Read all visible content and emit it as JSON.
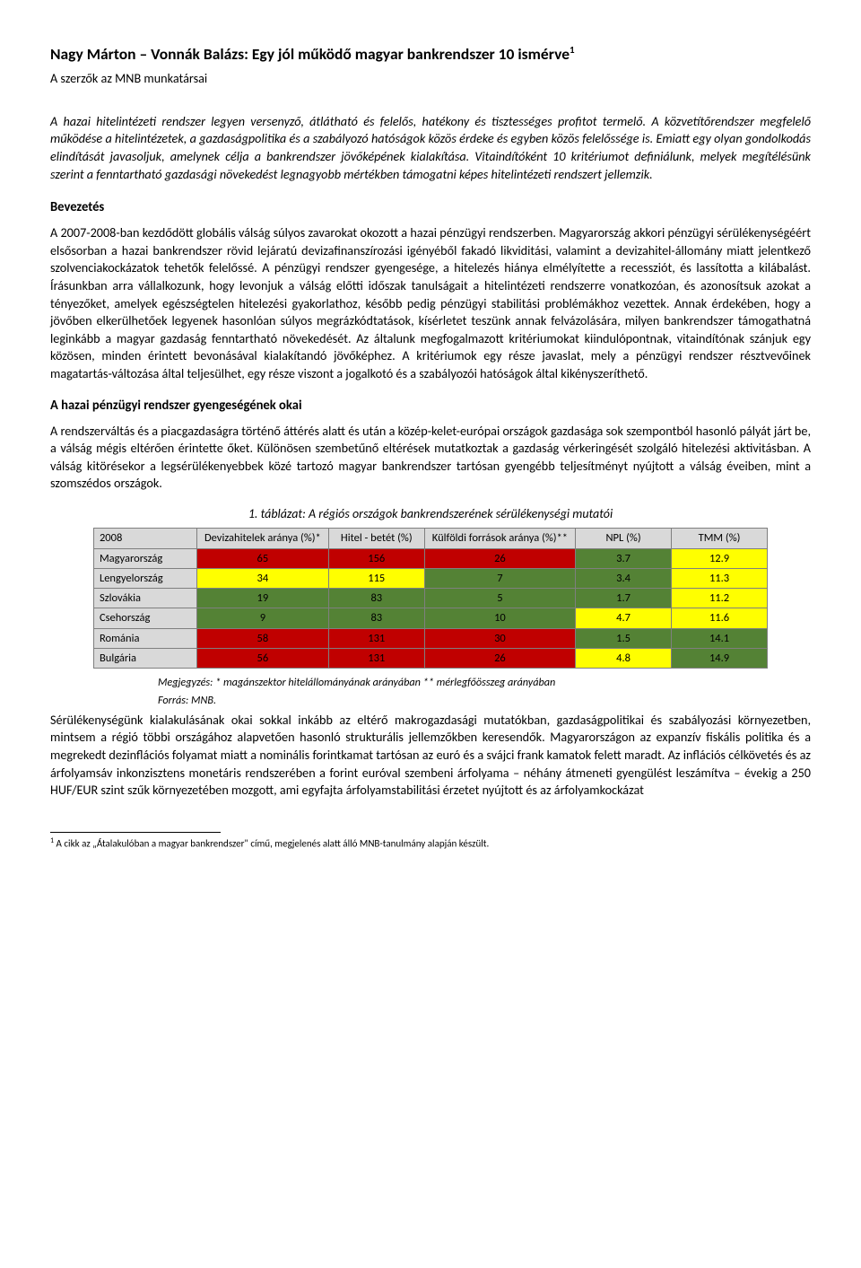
{
  "title_main": "Nagy Márton – Vonnák Balázs: Egy jól működő magyar bankrendszer 10 ismérve",
  "title_sup": "1",
  "subtitle": "A szerzők az MNB munkatársai",
  "lead": "A hazai hitelintézeti rendszer legyen versenyző, átlátható és felelős, hatékony és tisztességes profitot termelő. A közvetítőrendszer megfelelő működése a hitelintézetek, a gazdaságpolitika és a szabályozó hatóságok közös érdeke és egyben közös felelőssége is. Emiatt egy olyan gondolkodás elindítását javasoljuk, amelynek célja a bankrendszer jövőképének kialakítása. Vitaindítóként 10 kritériumot definiálunk, melyek megítélésünk szerint a fenntartható gazdasági növekedést legnagyobb mértékben támogatni képes hitelintézeti rendszert jellemzik.",
  "sec1_head": "Bevezetés",
  "sec1_body": "A 2007-2008-ban kezdődött globális válság súlyos zavarokat okozott a hazai pénzügyi rendszerben. Magyarország akkori pénzügyi sérülékenységéért elsősorban a hazai bankrendszer rövid lejáratú devizafinanszírozási igényéből fakadó likviditási, valamint a devizahitel-állomány miatt jelentkező szolvenciakockázatok tehetők felelőssé. A pénzügyi rendszer gyengesége, a hitelezés hiánya elmélyítette a recessziót, és lassította a kilábalást. Írásunkban arra vállalkozunk, hogy levonjuk a válság előtti időszak tanulságait a hitelintézeti rendszerre vonatkozóan, és azonosítsuk azokat a tényezőket, amelyek egészségtelen hitelezési gyakorlathoz, később pedig pénzügyi stabilitási problémákhoz vezettek. Annak érdekében, hogy a jövőben elkerülhetőek legyenek hasonlóan súlyos megrázkódtatások, kísérletet teszünk annak felvázolására, milyen bankrendszer támogathatná leginkább a magyar gazdaság fenntartható növekedését. Az általunk megfogalmazott kritériumokat kiindulópontnak, vitaindítónak szánjuk egy közösen, minden érintett bevonásával kialakítandó jövőképhez. A kritériumok egy része javaslat, mely a pénzügyi rendszer résztvevőinek magatartás-változása által teljesülhet, egy része viszont a jogalkotó és a szabályozói hatóságok által kikényszeríthető.",
  "sec2_head": "A hazai pénzügyi rendszer gyengeségének okai",
  "sec2_body": "A rendszerváltás és a piacgazdaságra történő áttérés alatt és után a közép-kelet-európai országok gazdasága sok szempontból hasonló pályát járt be, a válság mégis eltérően érintette őket. Különösen szembetűnő eltérések mutatkoztak a gazdaság vérkeringését szolgáló hitelezési aktivitásban. A válság kitörésekor a legsérülékenyebbek közé tartozó magyar bankrendszer tartósan gyengébb teljesítményt nyújtott a válság éveiben, mint a szomszédos országok.",
  "table": {
    "caption": "1. táblázat: A régiós országok bankrendszerének sérülékenységi mutatói",
    "year": "2008",
    "columns": [
      "Devizahitelek aránya (%)*",
      "Hitel - betét (%)",
      "Külföldi források aránya (%)**",
      "NPL (%)",
      "TMM (%)"
    ],
    "rows": [
      {
        "name": "Magyarország",
        "cells": [
          {
            "v": "65",
            "bg": "#c00000"
          },
          {
            "v": "156",
            "bg": "#c00000"
          },
          {
            "v": "26",
            "bg": "#c00000"
          },
          {
            "v": "3.7",
            "bg": "#548235"
          },
          {
            "v": "12.9",
            "bg": "#ffff00"
          }
        ]
      },
      {
        "name": "Lengyelország",
        "cells": [
          {
            "v": "34",
            "bg": "#ffff00"
          },
          {
            "v": "115",
            "bg": "#ffff00"
          },
          {
            "v": "7",
            "bg": "#548235"
          },
          {
            "v": "3.4",
            "bg": "#548235"
          },
          {
            "v": "11.3",
            "bg": "#ffff00"
          }
        ]
      },
      {
        "name": "Szlovákia",
        "cells": [
          {
            "v": "19",
            "bg": "#548235"
          },
          {
            "v": "83",
            "bg": "#548235"
          },
          {
            "v": "5",
            "bg": "#548235"
          },
          {
            "v": "1.7",
            "bg": "#548235"
          },
          {
            "v": "11.2",
            "bg": "#ffff00"
          }
        ]
      },
      {
        "name": "Csehország",
        "cells": [
          {
            "v": "9",
            "bg": "#548235"
          },
          {
            "v": "83",
            "bg": "#548235"
          },
          {
            "v": "10",
            "bg": "#548235"
          },
          {
            "v": "4.7",
            "bg": "#ffff00"
          },
          {
            "v": "11.6",
            "bg": "#ffff00"
          }
        ]
      },
      {
        "name": "Románia",
        "cells": [
          {
            "v": "58",
            "bg": "#c00000"
          },
          {
            "v": "131",
            "bg": "#c00000"
          },
          {
            "v": "30",
            "bg": "#c00000"
          },
          {
            "v": "1.5",
            "bg": "#548235"
          },
          {
            "v": "14.1",
            "bg": "#548235"
          }
        ]
      },
      {
        "name": "Bulgária",
        "cells": [
          {
            "v": "56",
            "bg": "#c00000"
          },
          {
            "v": "131",
            "bg": "#c00000"
          },
          {
            "v": "26",
            "bg": "#c00000"
          },
          {
            "v": "4.8",
            "bg": "#ffff00"
          },
          {
            "v": "14.9",
            "bg": "#548235"
          }
        ]
      }
    ]
  },
  "note1": "Megjegyzés: * magánszektor hitelállományának arányában ** mérlegfőösszeg arányában",
  "note2": "Forrás: MNB.",
  "sec3_body": "Sérülékenységünk kialakulásának okai sokkal inkább az eltérő makrogazdasági mutatókban, gazdaságpolitikai és szabályozási környezetben, mintsem a régió többi országához alapvetően hasonló strukturális jellemzőkben keresendők. Magyarországon az expanzív fiskális politika és a megrekedt dezinflációs folyamat miatt a nominális forintkamat tartósan az euró és a svájci frank kamatok felett maradt. Az inflációs célkövetés és az árfolyamsáv inkonzisztens monetáris rendszerében a forint euróval szembeni árfolyama – néhány átmeneti gyengülést leszámítva – évekig a 250 HUF/EUR szint szűk környezetében mozgott, ami egyfajta árfolyamstabilitási érzetet nyújtott és az árfolyamkockázat",
  "footnote_num": "1",
  "footnote_text": " A cikk az „Átalakulóban a magyar bankrendszer\" című, megjelenés alatt álló MNB-tanulmány alapján készült."
}
